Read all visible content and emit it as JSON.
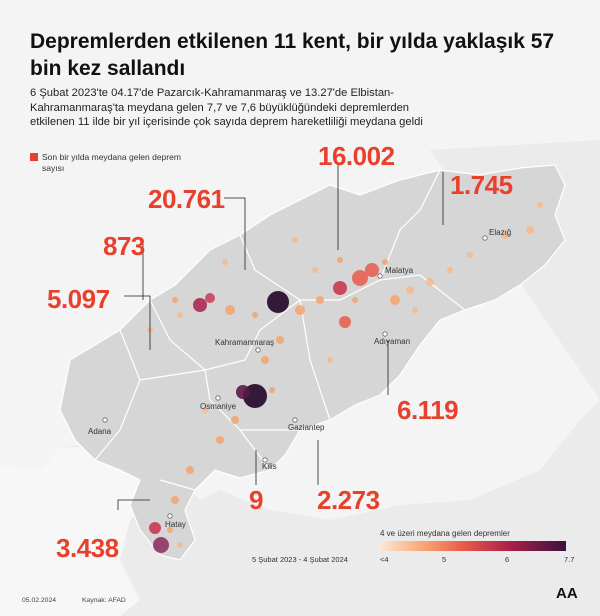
{
  "header": {
    "title": "Depremlerden etkilenen 11 kent, bir yılda yaklaşık 57 bin kez sallandı",
    "subtitle": "6 Şubat 2023'te 04.17'de Pazarcık-Kahramanmaraş ve 13.27'de Elbistan-Kahramanmaraş'ta meydana gelen 7,7 ve 7,6 büyüklüğündeki depremlerden etkilenen 11 ilde bir yıl içerisinde çok sayıda deprem hareketliliği meydana geldi"
  },
  "legend": {
    "swatch_label": "Son bir yılda meydana gelen deprem sayısı",
    "swatch_color": "#e8402c",
    "gradient_title": "4 ve üzeri meydana gelen depremler",
    "ticks": [
      "<4",
      "5",
      "6",
      "7.7"
    ],
    "period": "5 Şubat 2023 - 4 Şubat 2024"
  },
  "counts": {
    "malatya": "16.002",
    "kahramanmaras": "20.761",
    "elazig": "1.745",
    "osmaniye": "873",
    "adana": "5.097",
    "adiyaman": "6.119",
    "hatay": "3.438",
    "kilis": "9",
    "gaziantep": "2.273"
  },
  "cities": {
    "elazig": "Elazığ",
    "malatya": "Malatya",
    "kahramanmaras": "Kahramanmaraş",
    "adiyaman": "Adıyaman",
    "osmaniye": "Osmaniye",
    "adana": "Adana",
    "gaziantep": "Gaziantep",
    "kilis": "Kilis",
    "hatay": "Hatay"
  },
  "footer": {
    "date": "05.02.2024",
    "source": "Kaynak: AFAD",
    "logo": "AA"
  },
  "colors": {
    "accent": "#e8402c",
    "land": "#d6d6d6",
    "background": "#f4f4f4"
  }
}
